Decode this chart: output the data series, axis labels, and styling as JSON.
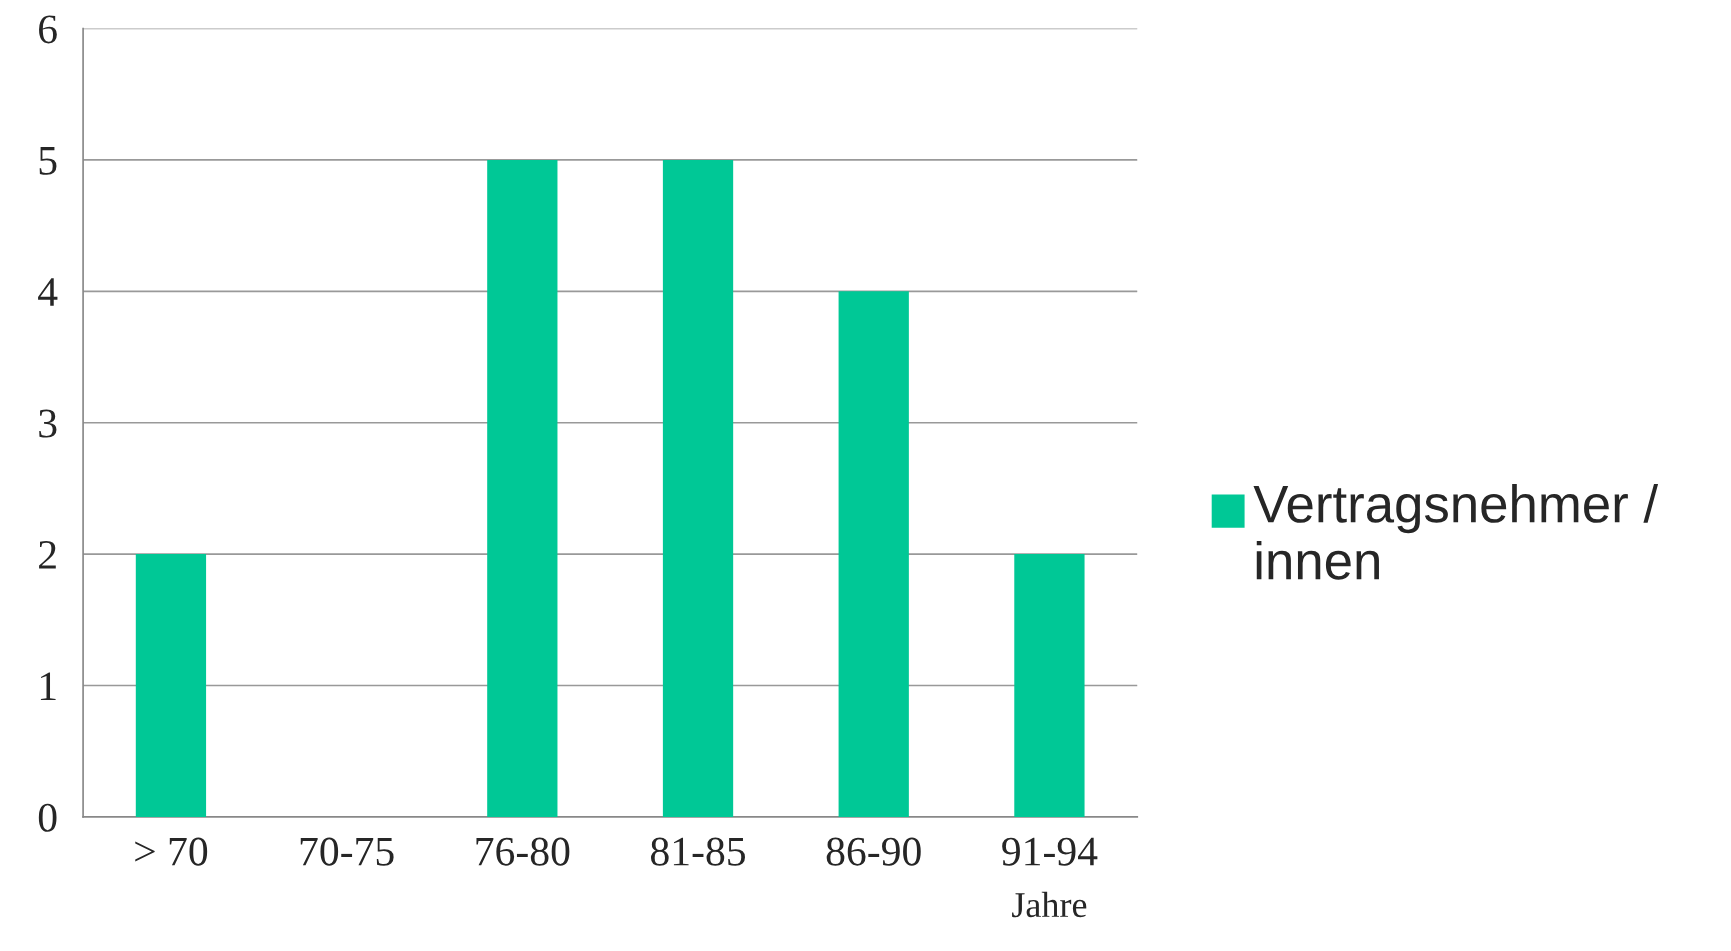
{
  "chart_data": {
    "type": "bar",
    "xlabel": "Jahre",
    "categories": [
      "> 70",
      "70-75",
      "76-80",
      "81-85",
      "86-90",
      "91-94"
    ],
    "series": [
      {
        "name": "Vertragsnehmer / innen",
        "color": "#00c896",
        "values": [
          2,
          0,
          5,
          5,
          4,
          2
        ]
      }
    ],
    "ylim": [
      0,
      6
    ],
    "yticks": [
      0,
      1,
      2,
      3,
      4,
      5,
      6
    ],
    "grid": "y",
    "legend": "right"
  }
}
